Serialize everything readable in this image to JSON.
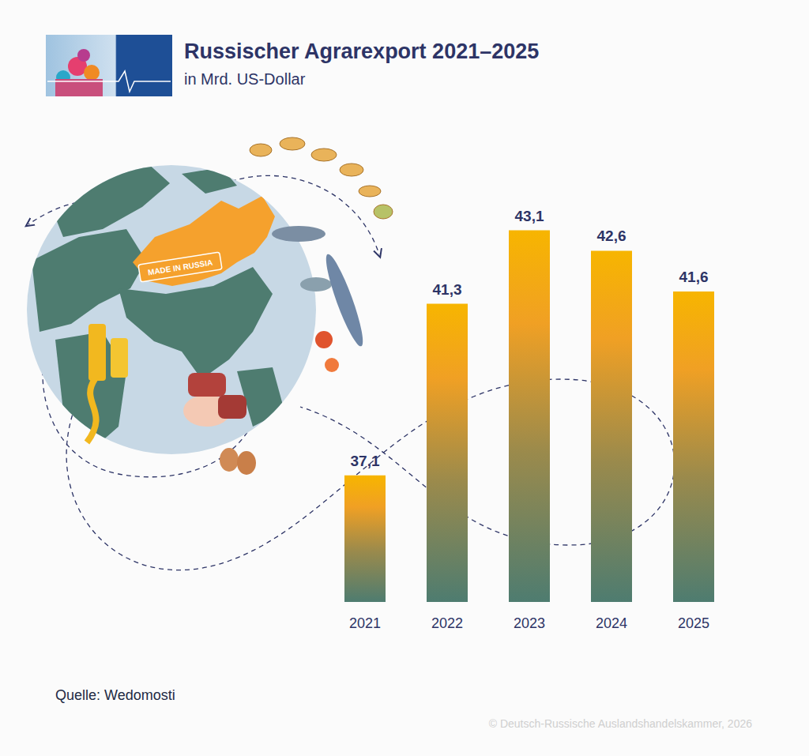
{
  "chart_data": {
    "type": "bar",
    "title": "Russischer Agrarexport 2021–2025",
    "subtitle": "in Mrd. US-Dollar",
    "categories": [
      "2021",
      "2022",
      "2023",
      "2024",
      "2025"
    ],
    "values": [
      37.1,
      41.3,
      43.1,
      42.6,
      41.6
    ],
    "value_labels": [
      "37,1",
      "41,3",
      "43,1",
      "42,6",
      "41,6"
    ],
    "color": "#f7b500",
    "ylim": [
      34,
      44
    ],
    "yticks": [
      34,
      44
    ],
    "grid": false,
    "data_labels": true,
    "tick_labels": "x",
    "source": "Quelle: Wedomosti",
    "copyright": "© Deutsch-Russische Auslandshandelskammer, 2026",
    "annotations": [
      "MADE IN RUSSIA"
    ]
  }
}
